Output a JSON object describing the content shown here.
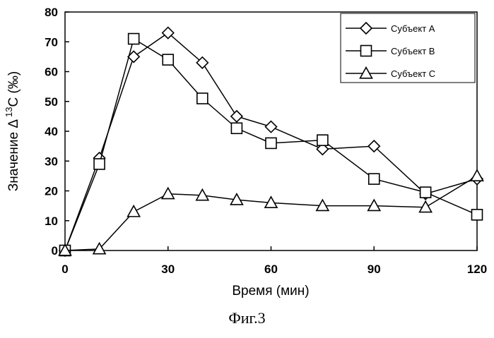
{
  "chart_data": {
    "type": "line",
    "xlabel": "Время (мин)",
    "ylabel_main": "Значение Δ",
    "ylabel_sup": "13",
    "ylabel_tail": "C (‰)",
    "xlim": [
      0,
      120
    ],
    "ylim": [
      0,
      80
    ],
    "xticks": [
      0,
      30,
      60,
      90,
      120
    ],
    "yticks": [
      0,
      10,
      20,
      30,
      40,
      50,
      60,
      70,
      80
    ],
    "grid": false,
    "legend_position": "top-right",
    "series": [
      {
        "name": "Субъект А",
        "marker": "diamond",
        "x": [
          0,
          10,
          20,
          30,
          40,
          50,
          60,
          75,
          90,
          105,
          120
        ],
        "y": [
          0,
          31,
          65,
          73,
          63,
          45,
          41.5,
          34,
          35,
          19,
          24
        ]
      },
      {
        "name": "Субъект В",
        "marker": "square",
        "x": [
          0,
          10,
          20,
          30,
          40,
          50,
          60,
          75,
          90,
          105,
          120
        ],
        "y": [
          0,
          29,
          71,
          64,
          51,
          41,
          36,
          37,
          24,
          19.5,
          12
        ]
      },
      {
        "name": "Субъект С",
        "marker": "triangle",
        "x": [
          0,
          10,
          20,
          30,
          40,
          50,
          60,
          75,
          90,
          105,
          120
        ],
        "y": [
          0,
          0.5,
          13,
          19,
          18.5,
          17,
          16,
          15,
          15,
          14.5,
          25
        ]
      }
    ]
  },
  "caption": "Фиг.3"
}
